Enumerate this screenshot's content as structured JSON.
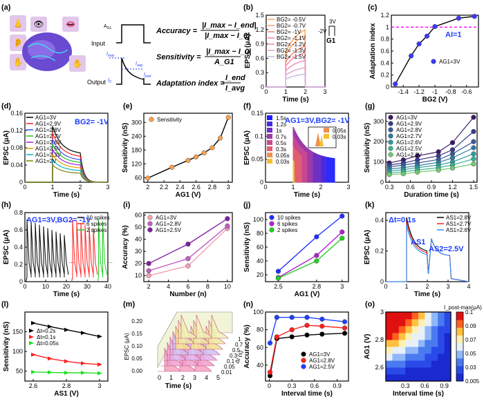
{
  "figure": {
    "panel_labels": [
      "(a)",
      "(b)",
      "(c)",
      "(d)",
      "(e)",
      "(f)",
      "(g)",
      "(h)",
      "(i)",
      "(j)",
      "(k)",
      "(l)",
      "(m)",
      "(n)",
      "(o)"
    ]
  },
  "panel_a": {
    "input_label": "Input",
    "output_label": "Output",
    "pulse_label": "A",
    "pulse_label_sub": "G1",
    "imax_label": "I",
    "imax_sub": "max",
    "iavg_label": "I",
    "iavg_sub": "avg",
    "iend_label": "I",
    "iend_sub": "end",
    "i0_label": "I",
    "i0_sub": "0",
    "accuracy_lhs": "Accuracy =",
    "accuracy_num": "|I_max − I_end|",
    "accuracy_den": "|I_max − I_0|",
    "sensitivity_lhs": "Sensitivity =",
    "sensitivity_num": "|I_max − I_0|",
    "sensitivity_den": "A_G1",
    "adaptation_lhs": "Adaptation index =",
    "adaptation_num": "I_end",
    "adaptation_den": "I_avg"
  },
  "chart_data": [
    {
      "panel": "b",
      "type": "line",
      "xlabel": "Time (s)",
      "ylabel": "EPSC (μA)",
      "xlim": [
        0,
        3
      ],
      "ylim": [
        0,
        1.5
      ],
      "xticks": [
        0,
        1,
        2,
        3
      ],
      "yticks": [
        0.0,
        0.3,
        0.6,
        0.9,
        1.2,
        1.5
      ],
      "series": [
        {
          "name": "B_G2= -0.5V",
          "peak": 1.33,
          "color": "#ffa050"
        },
        {
          "name": "B_G2= -0.7V",
          "peak": 1.2,
          "color": "#ff9a6a"
        },
        {
          "name": "B_G2= -1V",
          "peak": 0.95,
          "color": "#f5836f"
        },
        {
          "name": "B_G2= -1.1V",
          "peak": 0.8,
          "color": "#ff7aa0"
        },
        {
          "name": "B_G2= -1.2V",
          "peak": 0.62,
          "color": "#f08ab8"
        },
        {
          "name": "B_G2= -1.3V",
          "peak": 0.45,
          "color": "#e0a0d0"
        },
        {
          "name": "B_G2= -1.5V",
          "peak": 0.3,
          "color": "#c8b4e0"
        }
      ],
      "inset_labels": {
        "v_high": "3V",
        "v_low": "-2V",
        "gate": "G1"
      }
    },
    {
      "panel": "c",
      "type": "line",
      "xlabel": "B_G2 (V)",
      "ylabel": "Adaptation index",
      "xlim": [
        -1.55,
        -0.45
      ],
      "ylim": [
        0,
        1.2
      ],
      "xticks": [
        -1.4,
        -1.2,
        -1.0,
        -0.8,
        -0.6
      ],
      "yticks": [
        0.0,
        0.2,
        0.4,
        0.6,
        0.8,
        1.0,
        1.2
      ],
      "series": [
        {
          "name": "A_G1=3V",
          "x": [
            -1.5,
            -1.3,
            -1.2,
            -1.1,
            -1.0,
            -0.7,
            -0.5
          ],
          "y": [
            0.05,
            0.52,
            0.72,
            0.85,
            1.01,
            1.15,
            1.18
          ]
        }
      ],
      "reference_line": {
        "y": 1.0,
        "label": "AI=1"
      }
    },
    {
      "panel": "d",
      "type": "line",
      "xlabel": "Time (s)",
      "ylabel": "EPSC (μA)",
      "xlim": [
        0,
        3
      ],
      "ylim": [
        0,
        0.16
      ],
      "xticks": [
        0,
        1,
        2,
        3
      ],
      "yticks": [
        0.0,
        0.04,
        0.08,
        0.12,
        0.16
      ],
      "annotation": "B_G2= -1V",
      "series": [
        {
          "name": "A_G1=3V",
          "peak": 0.13,
          "color": "#000000"
        },
        {
          "name": "A_G1=2.9V",
          "peak": 0.115,
          "color": "#ff2020"
        },
        {
          "name": "A_G1=2.8V",
          "peak": 0.1,
          "color": "#3050ff"
        },
        {
          "name": "A_G1=2.7V",
          "peak": 0.088,
          "color": "#20c020"
        },
        {
          "name": "A_G1=2.6V",
          "peak": 0.076,
          "color": "#a020d0"
        },
        {
          "name": "A_G1=2.5V",
          "peak": 0.064,
          "color": "#e0a000"
        },
        {
          "name": "A_G1=2.3V",
          "peak": 0.052,
          "color": "#00b0c0"
        },
        {
          "name": "A_G1=2V",
          "peak": 0.04,
          "color": "#808000"
        }
      ]
    },
    {
      "panel": "e",
      "type": "line",
      "xlabel": "A_G1 (V)",
      "ylabel": "Sensitivity (nS)",
      "xlim": [
        1.95,
        3.05
      ],
      "ylim": [
        40,
        340
      ],
      "xticks": [
        2.0,
        2.2,
        2.4,
        2.6,
        2.8,
        3.0
      ],
      "yticks": [
        60,
        120,
        180,
        240,
        300
      ],
      "series": [
        {
          "name": "Sensitivity",
          "x": [
            2.0,
            2.3,
            2.5,
            2.6,
            2.7,
            2.8,
            2.9,
            3.0
          ],
          "y": [
            58,
            105,
            135,
            150,
            168,
            190,
            232,
            322
          ]
        }
      ]
    },
    {
      "panel": "f",
      "type": "line",
      "xlabel": "Time (s)",
      "ylabel": "EPSC (μA)",
      "xlim": [
        0,
        3
      ],
      "ylim": [
        0,
        0.15
      ],
      "xticks": [
        0,
        1,
        2,
        3
      ],
      "yticks": [
        0.0,
        0.05,
        0.1,
        0.15
      ],
      "annotation": "A_G1=3V,B_G2= -1V",
      "series": [
        {
          "name": "1.5s",
          "duration": 1.5,
          "color": "#2020ff"
        },
        {
          "name": "1.2s",
          "duration": 1.2,
          "color": "#4a2ae0"
        },
        {
          "name": "1s",
          "duration": 1.0,
          "color": "#7030c0"
        },
        {
          "name": "0.7s",
          "duration": 0.7,
          "color": "#a03aa8"
        },
        {
          "name": "0.5s",
          "duration": 0.5,
          "color": "#c84890"
        },
        {
          "name": "0.3s",
          "duration": 0.3,
          "color": "#e06070"
        },
        {
          "name": "0.05s",
          "duration": 0.05,
          "color": "#f09050"
        },
        {
          "name": "0.03s",
          "duration": 0.03,
          "color": "#f5c030"
        }
      ],
      "inset": {
        "ylabel": "EPSC (μA)",
        "xlabel": "Time (s)",
        "legend": [
          "0.05s",
          "0.03s"
        ]
      }
    },
    {
      "panel": "g",
      "type": "line",
      "xlabel": "Duration time (s)",
      "ylabel": "Sensitivity (nS)",
      "xlim": [
        0.25,
        1.55
      ],
      "ylim": [
        0,
        340
      ],
      "xticks": [
        0.3,
        0.6,
        0.9,
        1.2,
        1.5
      ],
      "yticks": [
        0,
        100,
        200,
        300
      ],
      "x": [
        0.3,
        0.5,
        0.7,
        1.0,
        1.2,
        1.5
      ],
      "series": [
        {
          "name": "A_G1=3V",
          "y": [
            95,
            110,
            130,
            150,
            195,
            320
          ],
          "color": "#3a1a6a"
        },
        {
          "name": "A_G1=2.9V",
          "y": [
            85,
            95,
            110,
            130,
            160,
            250
          ],
          "color": "#3a3a8a"
        },
        {
          "name": "A_G1=2.8V",
          "y": [
            75,
            85,
            95,
            112,
            140,
            200
          ],
          "color": "#3a5a9a"
        },
        {
          "name": "A_G1=2.7V",
          "y": [
            65,
            72,
            82,
            98,
            120,
            170
          ],
          "color": "#2f7aa0"
        },
        {
          "name": "A_G1=2.6V",
          "y": [
            55,
            62,
            72,
            85,
            100,
            140
          ],
          "color": "#2f9aa0"
        },
        {
          "name": "A_G1=2.5V",
          "y": [
            45,
            52,
            60,
            72,
            85,
            115
          ],
          "color": "#3ab090"
        },
        {
          "name": "A_G1=2.3V",
          "y": [
            38,
            42,
            50,
            60,
            70,
            90
          ],
          "color": "#70c870"
        }
      ]
    },
    {
      "panel": "h",
      "type": "line",
      "xlabel": "Time (s)",
      "ylabel": "EPSC (μA)",
      "xlim": [
        0,
        40
      ],
      "ylim": [
        0,
        0.8
      ],
      "xticks": [
        0,
        10,
        20,
        30,
        40
      ],
      "yticks": [
        0.0,
        0.2,
        0.4,
        0.6,
        0.8
      ],
      "annotation": "A_G1=3V,B_G2= -1V",
      "series": [
        {
          "name": "10 spikes",
          "count": 10,
          "start": 1,
          "color": "#000000"
        },
        {
          "name": "6 spikes",
          "count": 6,
          "start": 23,
          "color": "#ff2020"
        },
        {
          "name": "2 spikes",
          "count": 2,
          "start": 35.5,
          "color": "#20d020"
        }
      ]
    },
    {
      "panel": "i",
      "type": "line",
      "xlabel": "Number (n)",
      "ylabel": "Accuracy (%)",
      "xlim": [
        1.5,
        10.5
      ],
      "ylim": [
        5,
        62
      ],
      "xticks": [
        2,
        4,
        6,
        8,
        10
      ],
      "yticks": [
        10,
        20,
        30,
        40,
        50,
        60
      ],
      "x": [
        2,
        6,
        10
      ],
      "series": [
        {
          "name": "A_G1=3V",
          "y": [
            10,
            18,
            49
          ],
          "color": "#f4a0b0"
        },
        {
          "name": "A_G1=2.8V",
          "y": [
            14,
            24,
            51
          ],
          "color": "#c060c0"
        },
        {
          "name": "A_G1=2.5V",
          "y": [
            20,
            36,
            57
          ],
          "color": "#8020a0"
        }
      ]
    },
    {
      "panel": "j",
      "type": "line",
      "xlabel": "A_G1 (V)",
      "ylabel": "Sensitivity (nS)",
      "xlim": [
        2.4,
        3.05
      ],
      "ylim": [
        10,
        110
      ],
      "xticks": [
        2.5,
        2.8,
        3.0
      ],
      "yticks": [
        20,
        40,
        60,
        80,
        100
      ],
      "x": [
        2.5,
        2.8,
        3.0
      ],
      "series": [
        {
          "name": "10 spikes",
          "y": [
            25,
            75,
            105
          ],
          "color": "#2030ff"
        },
        {
          "name": "6 spikes",
          "y": [
            16,
            48,
            82
          ],
          "color": "#b020d0"
        },
        {
          "name": "2 spikes",
          "y": [
            15,
            40,
            73
          ],
          "color": "#20d020"
        }
      ]
    },
    {
      "panel": "k",
      "type": "line",
      "xlabel": "Time (s)",
      "ylabel": "EPSC (μA)",
      "xlim": [
        0,
        4
      ],
      "ylim": [
        0,
        0.45
      ],
      "xticks": [
        0,
        1,
        2,
        3,
        4
      ],
      "yticks": [
        0.0,
        0.2,
        0.4
      ],
      "annotations": [
        "Δt=0.1s",
        "A_S1",
        "A_S2=2.5V"
      ],
      "series": [
        {
          "name": "A_S1=2.8V",
          "color": "#000000"
        },
        {
          "name": "A_S1=2.7V",
          "color": "#ff2020"
        },
        {
          "name": "A_S1=2.6V",
          "color": "#3090ff"
        }
      ]
    },
    {
      "panel": "l",
      "type": "line",
      "xlabel": "A_S1 (V)",
      "ylabel": "Sensitivity (nS)",
      "xlim": [
        2.55,
        3.05
      ],
      "ylim": [
        25,
        200
      ],
      "xticks": [
        2.6,
        2.8,
        3.0
      ],
      "yticks": [
        50,
        100,
        150
      ],
      "x": [
        2.6,
        2.7,
        2.8,
        2.9,
        3.0
      ],
      "series": [
        {
          "name": "Δt=0.2s",
          "y": [
            172,
            163,
            155,
            147,
            138
          ],
          "color": "#000000"
        },
        {
          "name": "Δt=0.1s",
          "y": [
            92,
            82,
            75,
            70,
            67
          ],
          "color": "#ff2020"
        },
        {
          "name": "Δt=0.05s",
          "y": [
            48,
            47,
            46,
            46,
            45
          ],
          "color": "#20e020"
        }
      ]
    },
    {
      "panel": "m",
      "type": "line",
      "xlabel": "Time (s)",
      "ylabel": "EPSC (μA)",
      "zlabel": "Δt (s)",
      "xticks": [
        0,
        1,
        2,
        3,
        4,
        5
      ],
      "yticks": [
        0.0,
        0.05,
        0.1,
        0.15,
        0.2
      ],
      "zticks": [
        "0.01",
        "0.05",
        "0.1",
        "0.3",
        "0.5",
        "0.7",
        "1"
      ]
    },
    {
      "panel": "n",
      "type": "line",
      "xlabel": "Interval time (s)",
      "ylabel": "Accuracy (%)",
      "xlim": [
        -0.05,
        1.05
      ],
      "ylim": [
        22,
        100
      ],
      "xticks": [
        0.0,
        0.3,
        0.6,
        0.9
      ],
      "yticks": [
        40,
        60,
        80,
        100
      ],
      "x": [
        0.01,
        0.1,
        0.3,
        0.5,
        0.7,
        1.0
      ],
      "series": [
        {
          "name": "A_G1=3V",
          "y": [
            28,
            70,
            72,
            74,
            75,
            76
          ],
          "color": "#000000"
        },
        {
          "name": "A_G1=2.8V",
          "y": [
            32,
            72,
            80,
            85,
            84,
            82
          ],
          "color": "#ff2020"
        },
        {
          "name": "A_G1=2.5V",
          "y": [
            65,
            94,
            94,
            94,
            92,
            89
          ],
          "color": "#2040ff"
        }
      ]
    },
    {
      "panel": "o",
      "type": "heatmap",
      "xlabel": "Interval time (s)",
      "ylabel": "A_G1 (V)",
      "xlim": [
        0,
        1.0
      ],
      "ylim": [
        2.5,
        3.0
      ],
      "xticks": [
        0.3,
        0.6,
        0.9
      ],
      "yticks": [
        2.6,
        2.8,
        3.0
      ],
      "colorbar": {
        "title": "I_post-max(μA)",
        "ticks": [
          "0.005",
          "0.03",
          "0.05",
          "0.07",
          "0.09",
          "0.1"
        ]
      }
    }
  ]
}
